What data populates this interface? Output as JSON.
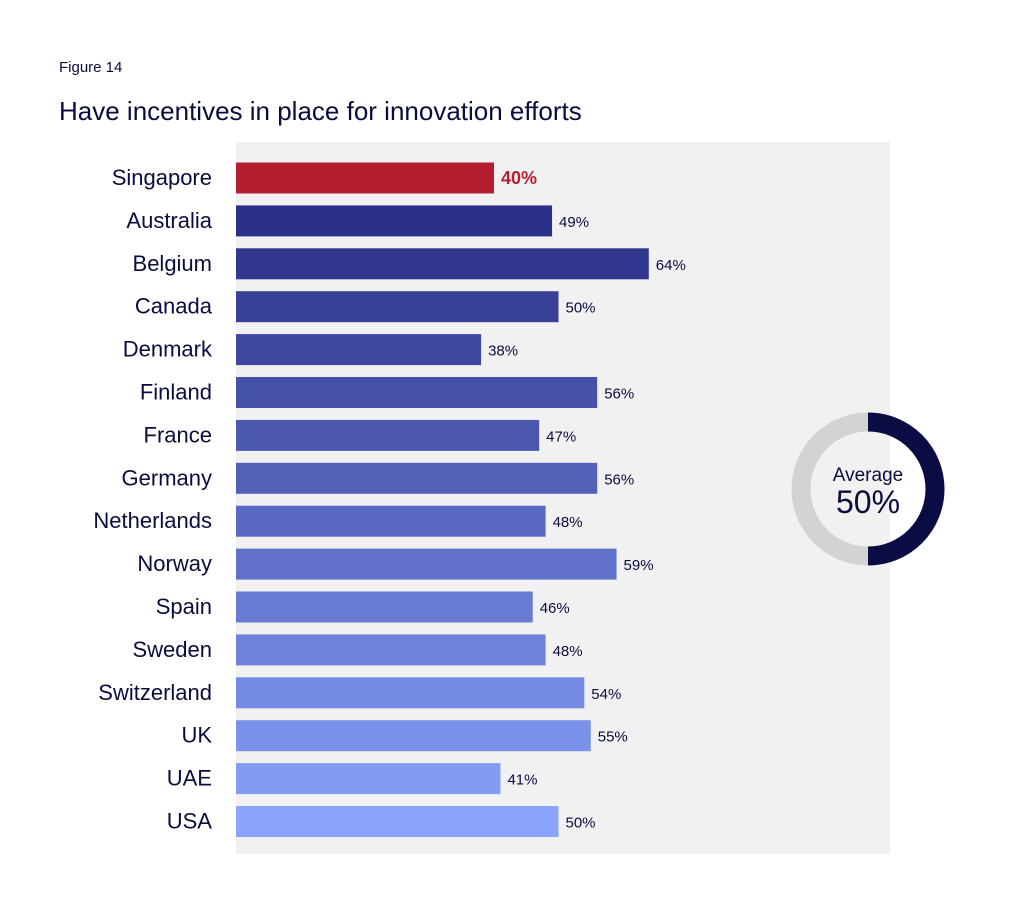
{
  "figure_label": "Figure 14",
  "chart_data": {
    "type": "bar",
    "orientation": "horizontal",
    "title": "Have incentives in place for innovation efforts",
    "categories": [
      "Singapore",
      "Australia",
      "Belgium",
      "Canada",
      "Denmark",
      "Finland",
      "France",
      "Germany",
      "Netherlands",
      "Norway",
      "Spain",
      "Sweden",
      "Switzerland",
      "UK",
      "UAE",
      "USA"
    ],
    "values": [
      40,
      49,
      64,
      50,
      38,
      56,
      47,
      56,
      48,
      59,
      46,
      48,
      54,
      55,
      41,
      50
    ],
    "value_labels": [
      "40%",
      "49%",
      "64%",
      "50%",
      "38%",
      "56%",
      "47%",
      "56%",
      "48%",
      "59%",
      "46%",
      "48%",
      "54%",
      "55%",
      "41%",
      "50%"
    ],
    "highlight_category": "Singapore",
    "highlight_color": "#b31f2e",
    "bar_color_start": "#2a2f87",
    "bar_color_end": "#8aa3fb",
    "plot_background": "#f1f1f2",
    "xlim": [
      0,
      100
    ],
    "grid": false,
    "average": {
      "caption": "Average",
      "value": 50,
      "label": "50%",
      "filled_color": "#0b0c44",
      "remaining_color": "#d3d3d3"
    }
  }
}
